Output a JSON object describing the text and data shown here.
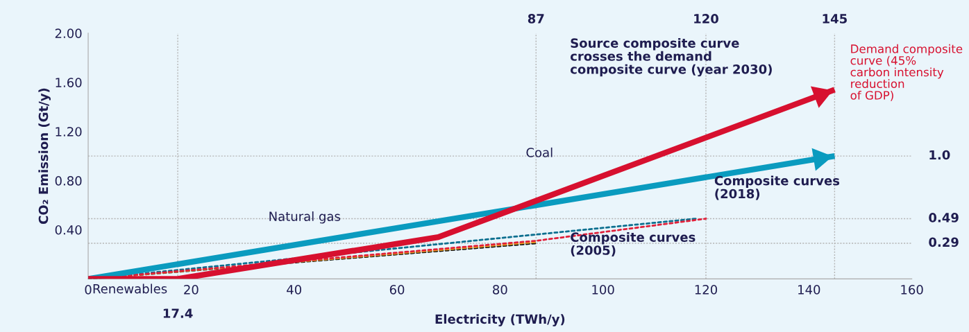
{
  "chart_data": {
    "type": "line",
    "xlabel": "Electricity (TWh/y)",
    "ylabel": "CO₂ Emission (Gt/y)",
    "xlim": [
      0,
      160
    ],
    "ylim": [
      0,
      2.0
    ],
    "xticks": [
      0,
      20,
      40,
      60,
      80,
      100,
      120,
      140,
      160
    ],
    "yticks": [
      {
        "value": 0.4,
        "label": "0.40"
      },
      {
        "value": 0.8,
        "label": "0.80"
      },
      {
        "value": 1.2,
        "label": "1.20"
      },
      {
        "value": 1.6,
        "label": "1.60"
      },
      {
        "value": 2.0,
        "label": "2.00"
      }
    ],
    "grid": false,
    "marker": "none",
    "series": [
      {
        "color": "#111111",
        "line_style": "dashed",
        "x": [
          0,
          87
        ],
        "values": [
          0,
          0.29
        ]
      },
      {
        "color": "#f0a020",
        "line_style": "dashed",
        "x": [
          0,
          87
        ],
        "values": [
          0,
          0.3
        ]
      },
      {
        "color": "#0b6f8f",
        "line_style": "dashed",
        "x": [
          0,
          118
        ],
        "values": [
          0,
          0.49
        ]
      },
      {
        "color": "#e0203a",
        "line_style": "dashed",
        "x": [
          0,
          87,
          120
        ],
        "values": [
          0,
          0.31,
          0.49
        ]
      },
      {
        "color": "#0a9bbf",
        "line_style": "solid",
        "x": [
          0,
          145
        ],
        "values": [
          0,
          1.0
        ]
      },
      {
        "name": "Demand composite\ncurve (45%\ncarbon intensity\nreduction\nof GDP)",
        "color": "#d7102f",
        "line_style": "solid",
        "x": [
          0,
          17.4,
          68,
          145
        ],
        "values": [
          0,
          0,
          0.34,
          1.54
        ]
      }
    ],
    "ref_lines": [
      {
        "axis": "x",
        "value": 17.4,
        "label": "17.4",
        "color": "#b5b5b5",
        "line_style": "dashed"
      },
      {
        "axis": "x",
        "value": 87,
        "label": "87",
        "color": "#b5b5b5",
        "line_style": "dashed"
      },
      {
        "axis": "x",
        "value": 120,
        "label": "120",
        "color": "#b5b5b5",
        "line_style": "dashed"
      },
      {
        "axis": "x",
        "value": 145,
        "label": "145",
        "color": "#b5b5b5",
        "line_style": "dashed"
      },
      {
        "axis": "y",
        "value": 1.0,
        "label": "1.0",
        "color": "#b5b5b5",
        "line_style": "dashed"
      },
      {
        "axis": "y",
        "value": 0.49,
        "label": "0.49",
        "color": "#b5b5b5",
        "line_style": "dashed"
      },
      {
        "axis": "y",
        "value": 0.29,
        "label": "0.29",
        "color": "#b5b5b5",
        "line_style": "dashed"
      }
    ],
    "annotations": [
      "Source composite curve\ncrosses the demand\ncomposite curve (year 2030)",
      {
        "text": "Coal",
        "x": 85,
        "y": 1.02
      },
      {
        "text": "Natural gas",
        "x": 35,
        "y": 0.5
      },
      "Composite curves\n(2018)",
      "Composite curves\n(2005)",
      "Renewables"
    ]
  }
}
